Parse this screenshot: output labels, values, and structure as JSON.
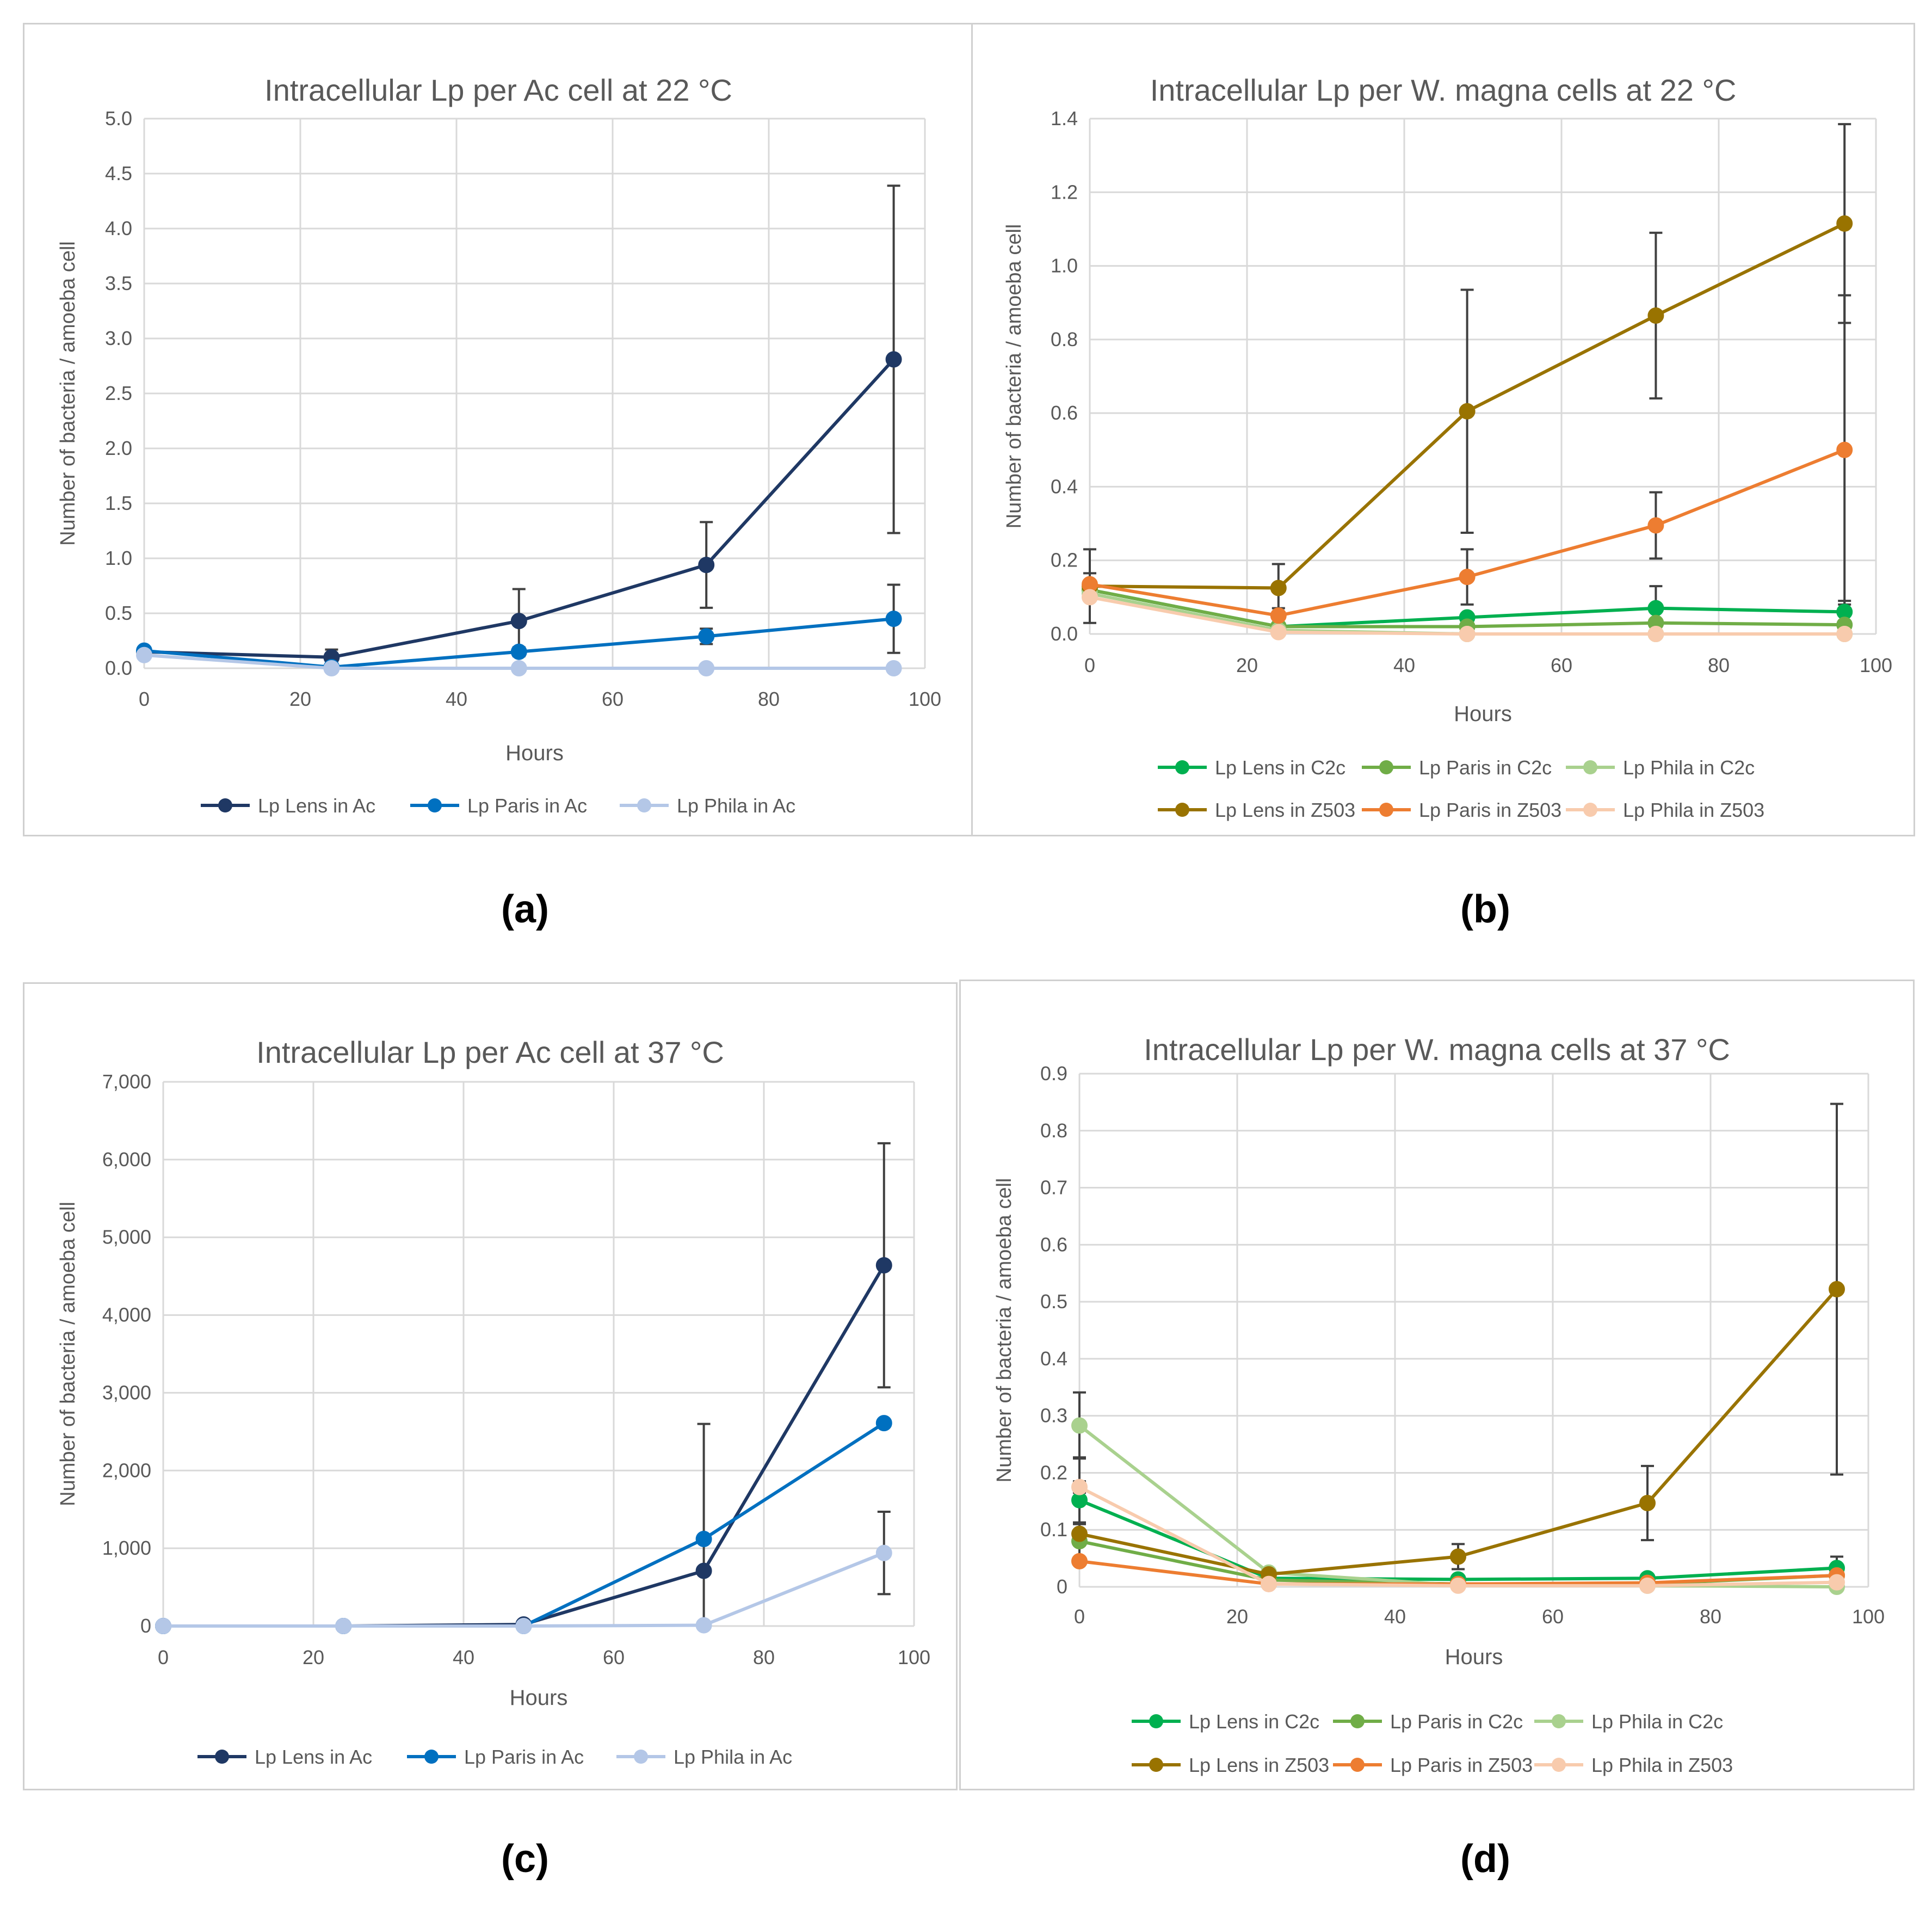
{
  "captions": [
    "(a)",
    "(b)",
    "(c)",
    "(d)"
  ],
  "chart_data": [
    {
      "id": "a",
      "type": "line",
      "title": "Intracellular Lp per Ac cell at 22 °C",
      "xlabel": "Hours",
      "ylabel": "Number of bacteria / amoeba cell",
      "xlim": [
        0,
        100
      ],
      "ylim": [
        0,
        5
      ],
      "xticks": [
        "0",
        "20",
        "40",
        "60",
        "80",
        "100"
      ],
      "yticks": [
        "0.0",
        "0.5",
        "1.0",
        "1.5",
        "2.0",
        "2.5",
        "3.0",
        "3.5",
        "4.0",
        "4.5",
        "5.0"
      ],
      "grid": true,
      "legend_position": "bottom",
      "legend_columns": 3,
      "x": [
        0,
        24,
        48,
        72,
        96
      ],
      "series": [
        {
          "name": "Lp Lens in Ac",
          "color": "#1f3864",
          "values": [
            0.15,
            0.1,
            0.43,
            0.94,
            2.81
          ],
          "err": [
            0.02,
            0.07,
            0.29,
            0.39,
            1.58
          ]
        },
        {
          "name": "Lp Paris in Ac",
          "color": "#0070c0",
          "values": [
            0.16,
            0.01,
            0.15,
            0.29,
            0.45
          ],
          "err": [
            0.02,
            0.01,
            0.04,
            0.07,
            0.31
          ]
        },
        {
          "name": "Lp Phila in Ac",
          "color": "#b4c7e7",
          "values": [
            0.12,
            0.0,
            0.0,
            0.0,
            0.0
          ],
          "err": [
            0,
            0,
            0,
            0,
            0
          ]
        }
      ]
    },
    {
      "id": "b",
      "type": "line",
      "title": "Intracellular Lp per W. magna cells at 22 °C",
      "xlabel": "Hours",
      "ylabel": "Number of bacteria / amoeba cell",
      "xlim": [
        0,
        100
      ],
      "ylim": [
        0,
        1.4
      ],
      "xticks": [
        "0",
        "20",
        "40",
        "60",
        "80",
        "100"
      ],
      "yticks": [
        "0.0",
        "0.2",
        "0.4",
        "0.6",
        "0.8",
        "1.0",
        "1.2",
        "1.4"
      ],
      "grid": true,
      "legend_position": "bottom",
      "legend_columns": 3,
      "x": [
        0,
        24,
        48,
        72,
        96
      ],
      "series": [
        {
          "name": "Lp Lens in C2c",
          "color": "#00b050",
          "values": [
            0.12,
            0.02,
            0.045,
            0.07,
            0.06
          ],
          "err": [
            0.02,
            0.01,
            0.01,
            0.06,
            0.03
          ]
        },
        {
          "name": "Lp Paris in C2c",
          "color": "#70ad47",
          "values": [
            0.12,
            0.02,
            0.02,
            0.03,
            0.025
          ],
          "err": [
            0.02,
            0.01,
            0.01,
            0.01,
            0.01
          ]
        },
        {
          "name": "Lp Phila in C2c",
          "color": "#a9d18e",
          "values": [
            0.11,
            0.01,
            0.0,
            0.0,
            0.0
          ],
          "err": [
            0.02,
            0,
            0,
            0,
            0
          ]
        },
        {
          "name": "Lp Lens in Z503",
          "color": "#997300",
          "values": [
            0.13,
            0.125,
            0.605,
            0.865,
            1.115
          ],
          "err": [
            0.1,
            0.065,
            0.33,
            0.225,
            0.27
          ]
        },
        {
          "name": "Lp Paris in Z503",
          "color": "#ed7d31",
          "values": [
            0.135,
            0.05,
            0.155,
            0.295,
            0.5
          ],
          "err": [
            0.03,
            0.02,
            0.075,
            0.09,
            0.42
          ]
        },
        {
          "name": "Lp Phila in Z503",
          "color": "#f8cbad",
          "values": [
            0.1,
            0.005,
            0.0,
            0.0,
            0.0
          ],
          "err": [
            0.01,
            0,
            0,
            0,
            0
          ]
        }
      ]
    },
    {
      "id": "c",
      "type": "line",
      "title": "Intracellular Lp per Ac cell at 37 °C",
      "xlabel": "Hours",
      "ylabel": "Number of bacteria / amoeba cell",
      "xlim": [
        0,
        100
      ],
      "ylim": [
        0,
        7000
      ],
      "xticks": [
        "0",
        "20",
        "40",
        "60",
        "80",
        "100"
      ],
      "yticks": [
        "0",
        "1,000",
        "2,000",
        "3,000",
        "4,000",
        "5,000",
        "6,000",
        "7,000"
      ],
      "grid": true,
      "legend_position": "bottom",
      "legend_columns": 3,
      "x": [
        0,
        24,
        48,
        72,
        96
      ],
      "series": [
        {
          "name": "Lp Lens in Ac",
          "color": "#1f3864",
          "values": [
            0,
            0,
            20,
            710,
            4640
          ],
          "err": [
            0,
            0,
            0,
            1890,
            1570
          ]
        },
        {
          "name": "Lp Paris in Ac",
          "color": "#0070c0",
          "values": [
            0,
            0,
            0,
            1120,
            2610
          ],
          "err": [
            0,
            0,
            0,
            0,
            0
          ]
        },
        {
          "name": "Lp Phila in Ac",
          "color": "#b4c7e7",
          "values": [
            0,
            0,
            0,
            10,
            940
          ],
          "err": [
            0,
            0,
            0,
            0,
            530
          ]
        }
      ]
    },
    {
      "id": "d",
      "type": "line",
      "title": "Intracellular Lp per W. magna cells at 37 °C",
      "xlabel": "Hours",
      "ylabel": "Number of bacteria / amoeba cell",
      "xlim": [
        0,
        100
      ],
      "ylim": [
        0,
        0.9
      ],
      "xticks": [
        "0",
        "20",
        "40",
        "60",
        "80",
        "100"
      ],
      "yticks": [
        "0",
        "0.1",
        "0.2",
        "0.3",
        "0.4",
        "0.5",
        "0.6",
        "0.7",
        "0.8",
        "0.9"
      ],
      "grid": true,
      "legend_position": "bottom",
      "legend_columns": 3,
      "x": [
        0,
        24,
        48,
        72,
        96
      ],
      "series": [
        {
          "name": "Lp Lens in C2c",
          "color": "#00b050",
          "values": [
            0.152,
            0.015,
            0.013,
            0.015,
            0.033
          ],
          "err": [
            0.075,
            0.01,
            0.005,
            0.005,
            0.02
          ]
        },
        {
          "name": "Lp Paris in C2c",
          "color": "#70ad47",
          "values": [
            0.08,
            0.012,
            0.005,
            0.005,
            0.02
          ],
          "err": [
            0.03,
            0.005,
            0.003,
            0.003,
            0.01
          ]
        },
        {
          "name": "Lp Phila in C2c",
          "color": "#a9d18e",
          "values": [
            0.283,
            0.025,
            0.003,
            0.002,
            0.0
          ],
          "err": [
            0.058,
            0.005,
            0.002,
            0.002,
            0
          ]
        },
        {
          "name": "Lp Lens in Z503",
          "color": "#997300",
          "values": [
            0.093,
            0.022,
            0.053,
            0.147,
            0.522
          ],
          "err": [
            0.02,
            0.005,
            0.022,
            0.065,
            0.325
          ]
        },
        {
          "name": "Lp Paris in Z503",
          "color": "#ed7d31",
          "values": [
            0.045,
            0.005,
            0.005,
            0.007,
            0.02
          ],
          "err": [
            0.005,
            0.002,
            0.002,
            0.002,
            0.005
          ]
        },
        {
          "name": "Lp Phila in Z503",
          "color": "#f8cbad",
          "values": [
            0.175,
            0.005,
            0.002,
            0.002,
            0.008
          ],
          "err": [
            0.01,
            0.002,
            0.001,
            0.001,
            0.003
          ]
        }
      ]
    }
  ]
}
